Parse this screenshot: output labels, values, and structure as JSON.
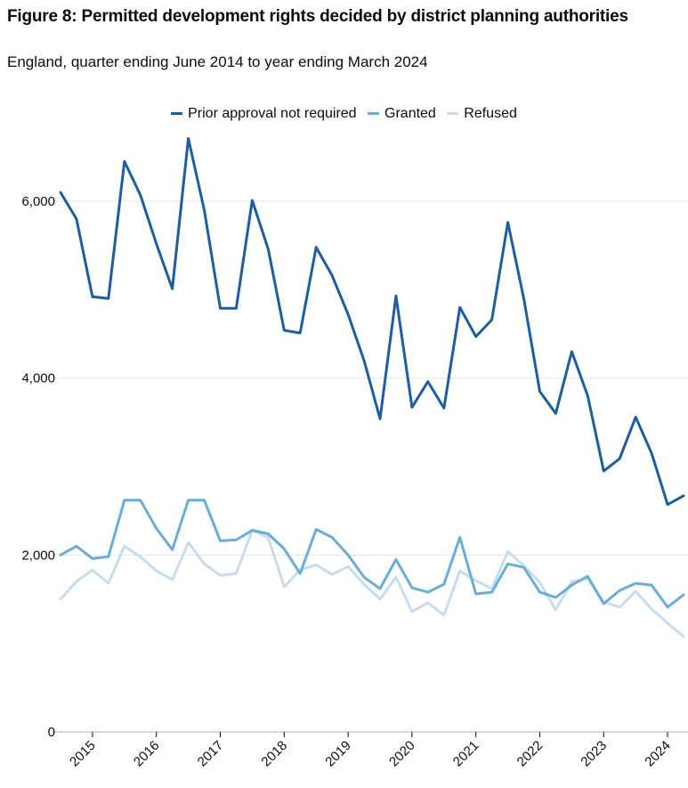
{
  "chart_data": {
    "type": "line",
    "title": "Figure 8: Permitted development rights decided by district planning authorities",
    "subtitle": "England, quarter ending June 2014 to year ending March 2024",
    "xlabel": "",
    "ylabel": "",
    "ylim": [
      0,
      6000
    ],
    "yticks": [
      {
        "value": 0,
        "label": "0"
      },
      {
        "value": 2000,
        "label": "2,000"
      },
      {
        "value": 4000,
        "label": "4,000"
      },
      {
        "value": 6000,
        "label": "6,000"
      }
    ],
    "xticks": [
      {
        "index": 2,
        "label": "2015"
      },
      {
        "index": 6,
        "label": "2016"
      },
      {
        "index": 10,
        "label": "2017"
      },
      {
        "index": 14,
        "label": "2018"
      },
      {
        "index": 18,
        "label": "2019"
      },
      {
        "index": 22,
        "label": "2020"
      },
      {
        "index": 26,
        "label": "2021"
      },
      {
        "index": 30,
        "label": "2022"
      },
      {
        "index": 34,
        "label": "2023"
      },
      {
        "index": 38,
        "label": "2024"
      }
    ],
    "legend_position": "top-center",
    "series": [
      {
        "name": "Prior approval not required",
        "color": "#1d5e9f",
        "values": [
          6100,
          5800,
          4920,
          4900,
          6450,
          6070,
          5520,
          5010,
          6710,
          5900,
          4790,
          4790,
          6010,
          5460,
          4540,
          4510,
          5480,
          5160,
          4720,
          4200,
          3540,
          4930,
          3670,
          3960,
          3660,
          4800,
          4470,
          4660,
          5760,
          4900,
          3850,
          3600,
          4300,
          3800,
          2950,
          3090,
          3560,
          3150,
          2570,
          2670
        ]
      },
      {
        "name": "Granted",
        "color": "#6aaed6",
        "values": [
          2000,
          2100,
          1960,
          1980,
          2620,
          2620,
          2300,
          2060,
          2620,
          2620,
          2160,
          2170,
          2280,
          2240,
          2070,
          1790,
          2290,
          2200,
          2000,
          1750,
          1620,
          1950,
          1630,
          1580,
          1670,
          2200,
          1560,
          1580,
          1900,
          1860,
          1580,
          1520,
          1660,
          1760,
          1450,
          1600,
          1680,
          1660,
          1410,
          1550
        ]
      },
      {
        "name": "Refused",
        "color": "#c6ddf0",
        "values": [
          1500,
          1700,
          1830,
          1680,
          2100,
          1980,
          1820,
          1720,
          2140,
          1900,
          1770,
          1790,
          2280,
          2200,
          1640,
          1830,
          1890,
          1780,
          1870,
          1670,
          1500,
          1750,
          1360,
          1460,
          1320,
          1820,
          1710,
          1620,
          2040,
          1880,
          1690,
          1380,
          1700,
          1730,
          1470,
          1410,
          1590,
          1390,
          1230,
          1080
        ]
      }
    ]
  }
}
